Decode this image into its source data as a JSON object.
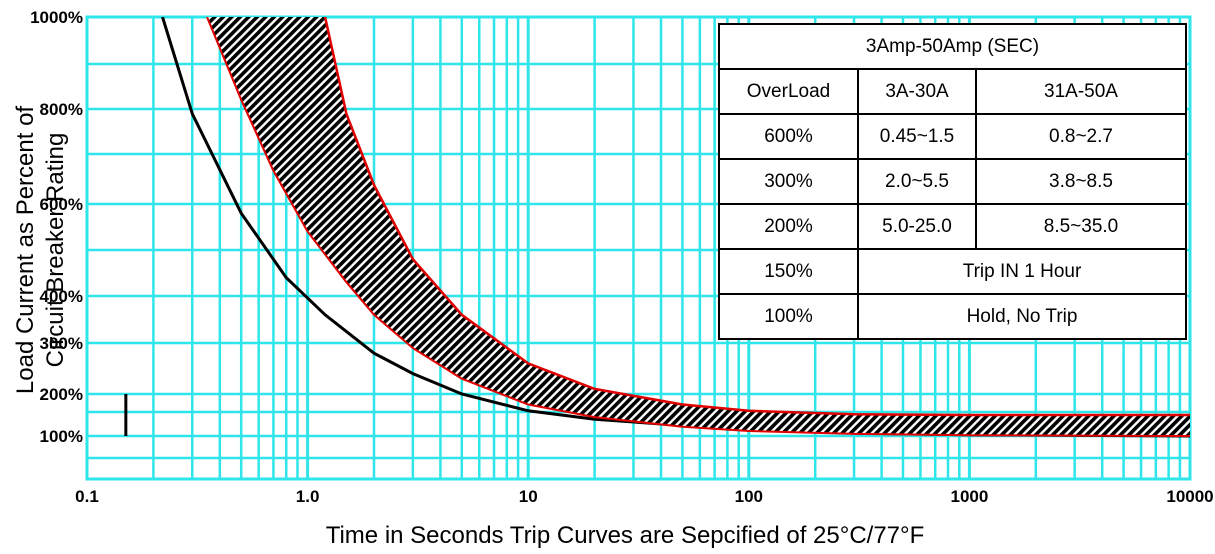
{
  "chart_data": {
    "type": "line",
    "title": "",
    "ylabel_line1": "Load Current as Percent of",
    "ylabel_line2": "Circuit Breaker Rating",
    "xlabel": "Time in Seconds   Trip Curves are Sepcified of 25°C/77°F",
    "x_scale": "log",
    "xlim": [
      0.1,
      10000
    ],
    "ylim": [
      0,
      1000
    ],
    "x_ticks": [
      {
        "value": 0.1,
        "label": "0.1"
      },
      {
        "value": 1,
        "label": "1.0"
      },
      {
        "value": 10,
        "label": "10"
      },
      {
        "value": 100,
        "label": "100"
      },
      {
        "value": 1000,
        "label": "1000"
      },
      {
        "value": 10000,
        "label": "10000"
      }
    ],
    "y_ticks": [
      {
        "value": 100,
        "label": "100%"
      },
      {
        "value": 200,
        "label": "200%"
      },
      {
        "value": 300,
        "label": "300%"
      },
      {
        "value": 400,
        "label": "400%"
      },
      {
        "value": 600,
        "label": "600%"
      },
      {
        "value": 800,
        "label": "800%"
      },
      {
        "value": 1000,
        "label": "1000%"
      }
    ],
    "grid": true,
    "grid_color": "#2ee6ea",
    "series": [
      {
        "style": "black-line",
        "x": [
          0.22,
          0.3,
          0.5,
          0.8,
          1.2,
          2,
          3,
          5,
          10,
          20,
          50,
          100,
          300,
          1000,
          10000
        ],
        "y": [
          1000,
          790,
          580,
          440,
          360,
          280,
          240,
          200,
          160,
          140,
          125,
          115,
          107,
          103,
          100
        ]
      },
      {
        "style": "black-line",
        "x": [
          0.45,
          0.6,
          0.8,
          1.0,
          1.5,
          2,
          3,
          5,
          10,
          20,
          50,
          100,
          300,
          1000,
          10000
        ],
        "y": [
          1000,
          850,
          740,
          660,
          520,
          430,
          360,
          290,
          220,
          180,
          155,
          140,
          130,
          127,
          125
        ]
      },
      {
        "style": "hatched-band",
        "upper_x": [
          1.2,
          1.5,
          2,
          3,
          5,
          10,
          20,
          50,
          100,
          300,
          1000,
          10000
        ],
        "upper_y": [
          1000,
          790,
          640,
          480,
          360,
          260,
          210,
          175,
          160,
          152,
          150,
          150
        ],
        "lower_x": [
          0.35,
          0.5,
          0.7,
          1.0,
          1.5,
          2,
          3,
          5,
          10,
          20,
          50,
          100,
          300,
          1000,
          10000
        ],
        "lower_y": [
          1000,
          820,
          670,
          540,
          430,
          360,
          290,
          230,
          175,
          145,
          122,
          112,
          105,
          102,
          100
        ],
        "fill": "#000000",
        "edge_color": "#e00000"
      },
      {
        "style": "vertical-marker",
        "x": [
          0.15,
          0.15
        ],
        "y": [
          100,
          200
        ]
      }
    ],
    "legend": "none"
  },
  "table": {
    "header": "3Amp-50Amp   (SEC)",
    "col_headers": [
      "OverLoad",
      "3A-30A",
      "31A-50A"
    ],
    "rows": [
      {
        "overload": "600%",
        "a": "0.45~1.5",
        "b": "0.8~2.7"
      },
      {
        "overload": "300%",
        "a": "2.0~5.5",
        "b": "3.8~8.5"
      },
      {
        "overload": "200%",
        "a": "5.0-25.0",
        "b": "8.5~35.0"
      }
    ],
    "merged_rows": [
      {
        "overload": "150%",
        "text": "Trip IN 1 Hour"
      },
      {
        "overload": "100%",
        "text": "Hold, No Trip"
      }
    ]
  }
}
